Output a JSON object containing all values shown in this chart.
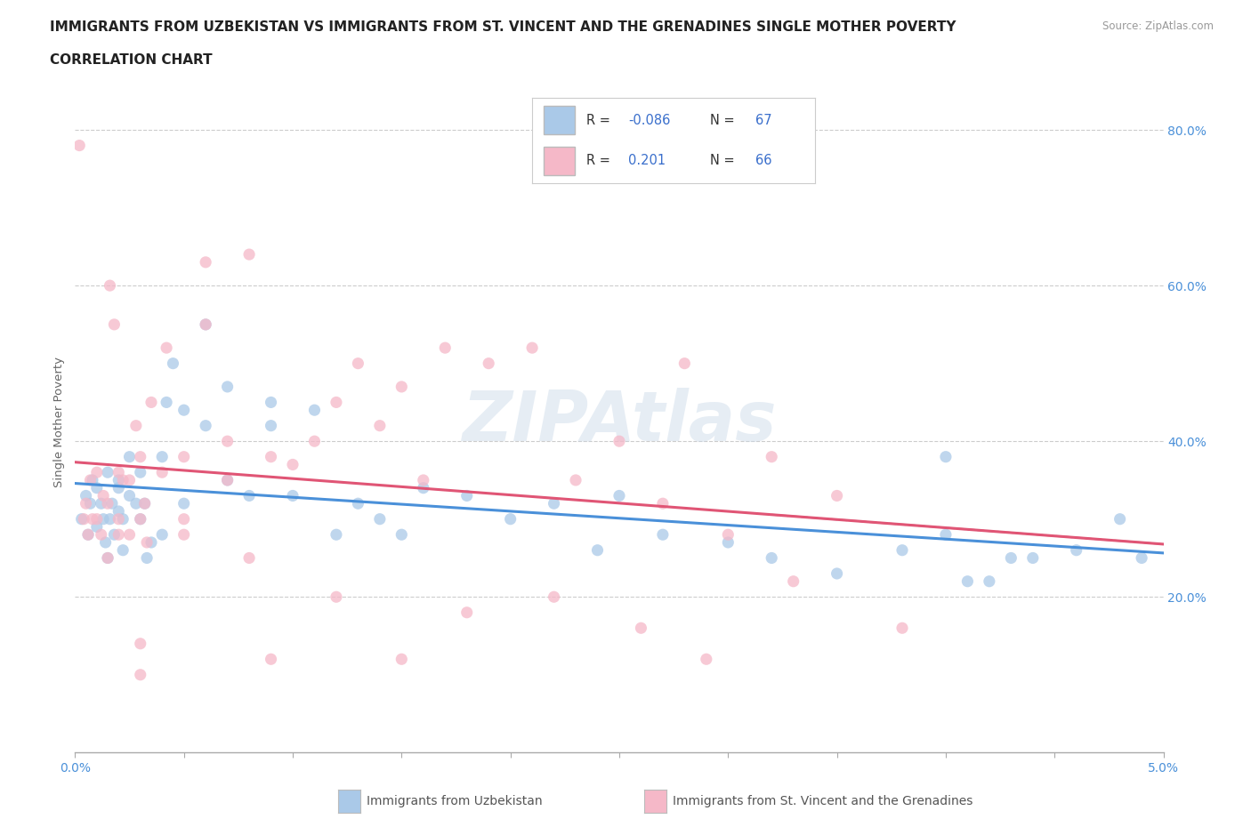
{
  "title_line1": "IMMIGRANTS FROM UZBEKISTAN VS IMMIGRANTS FROM ST. VINCENT AND THE GRENADINES SINGLE MOTHER POVERTY",
  "title_line2": "CORRELATION CHART",
  "source": "Source: ZipAtlas.com",
  "ylabel": "Single Mother Poverty",
  "xlim": [
    0.0,
    0.05
  ],
  "ylim": [
    0.0,
    0.85
  ],
  "series1_color": "#aac9e8",
  "series2_color": "#f5b8c8",
  "trend1_color": "#4a90d9",
  "trend2_color": "#e05575",
  "trend1_dash": "--",
  "trend2_dash": "-",
  "r1": -0.086,
  "n1": 67,
  "r2": 0.201,
  "n2": 66,
  "legend1": "Immigrants from Uzbekistan",
  "legend2": "Immigrants from St. Vincent and the Grenadines",
  "watermark": "ZIPAtlas",
  "background_color": "#ffffff",
  "grid_color": "#cccccc",
  "title_color": "#222222",
  "axis_label_color": "#4a90d9",
  "s1x": [
    0.0003,
    0.0005,
    0.0006,
    0.0007,
    0.0008,
    0.001,
    0.001,
    0.0012,
    0.0013,
    0.0014,
    0.0015,
    0.0015,
    0.0016,
    0.0017,
    0.0018,
    0.002,
    0.002,
    0.002,
    0.0022,
    0.0022,
    0.0025,
    0.0025,
    0.0028,
    0.003,
    0.003,
    0.0032,
    0.0033,
    0.0035,
    0.004,
    0.004,
    0.0042,
    0.0045,
    0.005,
    0.005,
    0.006,
    0.006,
    0.007,
    0.007,
    0.008,
    0.009,
    0.009,
    0.01,
    0.011,
    0.012,
    0.013,
    0.014,
    0.015,
    0.016,
    0.018,
    0.02,
    0.022,
    0.024,
    0.025,
    0.027,
    0.03,
    0.032,
    0.035,
    0.038,
    0.04,
    0.042,
    0.044,
    0.046,
    0.048,
    0.049,
    0.04,
    0.041,
    0.043
  ],
  "s1y": [
    0.3,
    0.33,
    0.28,
    0.32,
    0.35,
    0.29,
    0.34,
    0.32,
    0.3,
    0.27,
    0.36,
    0.25,
    0.3,
    0.32,
    0.28,
    0.34,
    0.31,
    0.35,
    0.3,
    0.26,
    0.33,
    0.38,
    0.32,
    0.3,
    0.36,
    0.32,
    0.25,
    0.27,
    0.38,
    0.28,
    0.45,
    0.5,
    0.44,
    0.32,
    0.55,
    0.42,
    0.35,
    0.47,
    0.33,
    0.42,
    0.45,
    0.33,
    0.44,
    0.28,
    0.32,
    0.3,
    0.28,
    0.34,
    0.33,
    0.3,
    0.32,
    0.26,
    0.33,
    0.28,
    0.27,
    0.25,
    0.23,
    0.26,
    0.38,
    0.22,
    0.25,
    0.26,
    0.3,
    0.25,
    0.28,
    0.22,
    0.25
  ],
  "s2x": [
    0.0002,
    0.0004,
    0.0005,
    0.0006,
    0.0007,
    0.0008,
    0.001,
    0.001,
    0.0012,
    0.0013,
    0.0015,
    0.0015,
    0.0016,
    0.0018,
    0.002,
    0.002,
    0.002,
    0.0022,
    0.0025,
    0.0025,
    0.0028,
    0.003,
    0.003,
    0.0032,
    0.0033,
    0.0035,
    0.004,
    0.0042,
    0.005,
    0.005,
    0.006,
    0.006,
    0.007,
    0.007,
    0.008,
    0.009,
    0.01,
    0.011,
    0.012,
    0.013,
    0.014,
    0.015,
    0.016,
    0.017,
    0.019,
    0.021,
    0.023,
    0.025,
    0.027,
    0.028,
    0.03,
    0.032,
    0.033,
    0.035,
    0.038,
    0.005,
    0.008,
    0.012,
    0.018,
    0.022,
    0.026,
    0.029,
    0.015,
    0.009,
    0.003,
    0.003
  ],
  "s2y": [
    0.78,
    0.3,
    0.32,
    0.28,
    0.35,
    0.3,
    0.3,
    0.36,
    0.28,
    0.33,
    0.32,
    0.25,
    0.6,
    0.55,
    0.3,
    0.36,
    0.28,
    0.35,
    0.35,
    0.28,
    0.42,
    0.3,
    0.38,
    0.32,
    0.27,
    0.45,
    0.36,
    0.52,
    0.38,
    0.3,
    0.63,
    0.55,
    0.4,
    0.35,
    0.64,
    0.38,
    0.37,
    0.4,
    0.45,
    0.5,
    0.42,
    0.47,
    0.35,
    0.52,
    0.5,
    0.52,
    0.35,
    0.4,
    0.32,
    0.5,
    0.28,
    0.38,
    0.22,
    0.33,
    0.16,
    0.28,
    0.25,
    0.2,
    0.18,
    0.2,
    0.16,
    0.12,
    0.12,
    0.12,
    0.1,
    0.14
  ]
}
